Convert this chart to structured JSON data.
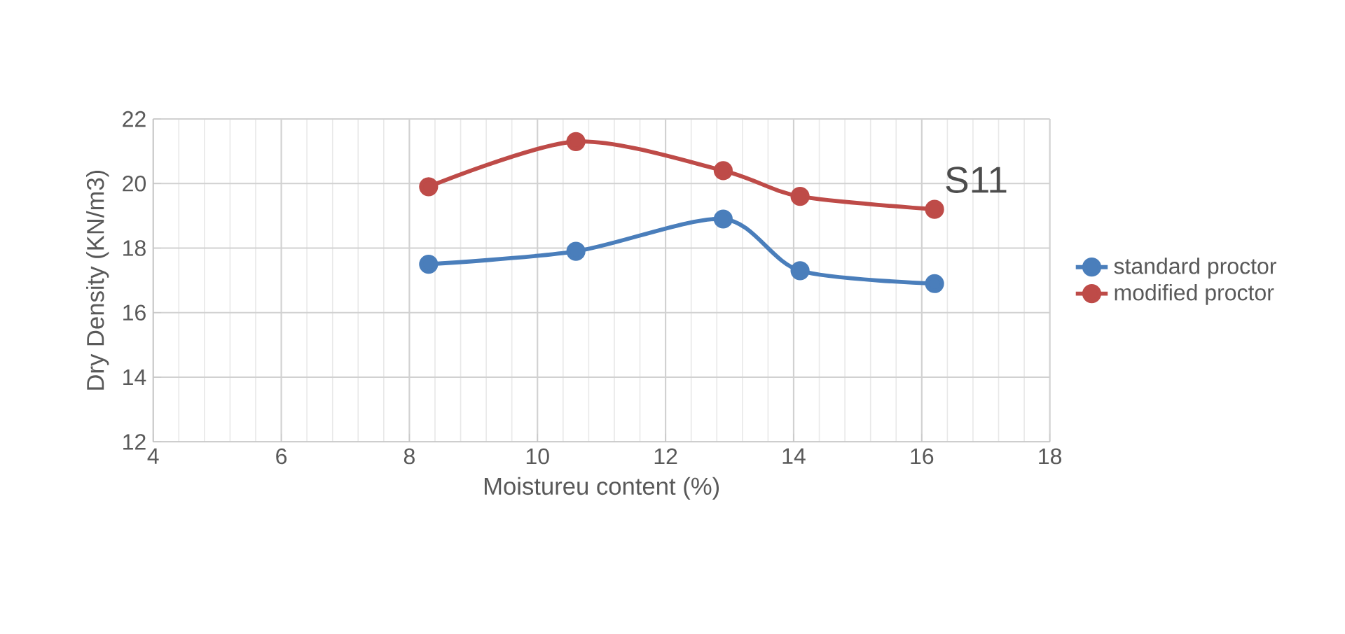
{
  "chart_data": {
    "type": "line",
    "title": "S11",
    "xlabel": "Moistureu content (%)",
    "ylabel": "Dry Density (KN/m3)",
    "xlim": [
      4,
      18
    ],
    "xticks": [
      4,
      6,
      8,
      10,
      12,
      14,
      16,
      18
    ],
    "ylim": [
      12,
      22
    ],
    "yticks": [
      12,
      14,
      16,
      18,
      20,
      22
    ],
    "grid": true,
    "legend": "right",
    "marker": "circle",
    "series": [
      {
        "name": "standard proctor",
        "color": "#4a7ebb",
        "x": [
          8.3,
          10.6,
          12.9,
          14.1,
          16.2
        ],
        "values": [
          17.5,
          17.9,
          18.9,
          17.3,
          16.9
        ]
      },
      {
        "name": "modified proctor",
        "color": "#be4b48",
        "x": [
          8.3,
          10.6,
          12.9,
          14.1,
          16.2
        ],
        "values": [
          19.9,
          21.3,
          20.4,
          19.6,
          19.2
        ]
      }
    ]
  }
}
